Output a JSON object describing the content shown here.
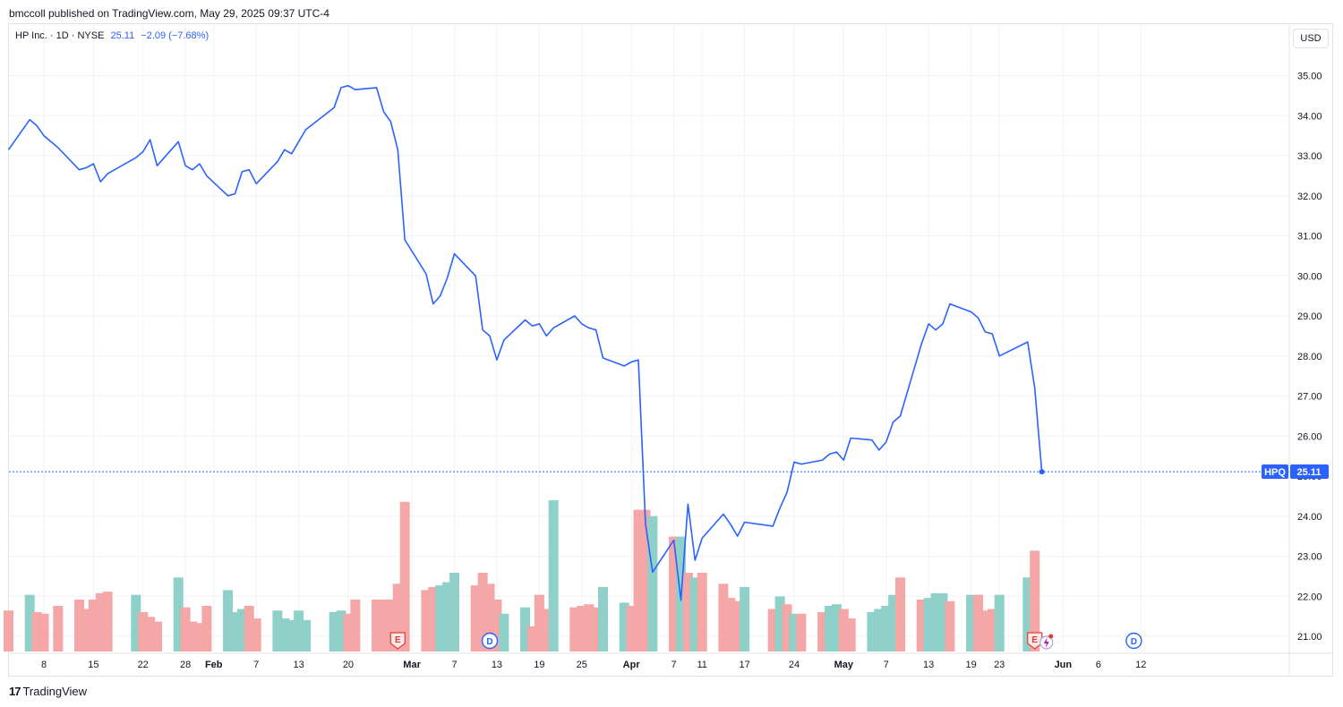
{
  "header": {
    "published_by": "bmccoll published on TradingView.com, May 29, 2025 09:37 UTC-4"
  },
  "legend": {
    "title": "HP Inc. · 1D · NYSE",
    "last_price": "25.11",
    "change": "−2.09 (−7.68%)"
  },
  "currency_label": "USD",
  "price_tag": {
    "symbol": "HPQ",
    "value": "25.11"
  },
  "footer": {
    "brand": "TradingView",
    "logo_mark": "17"
  },
  "colors": {
    "line": "#2962ff",
    "volume_up": "#8fd0c8",
    "volume_down": "#f5a6a6",
    "grid": "#f0f3fa",
    "event_earnings": "#e53935",
    "event_dividend": "#2962ff"
  },
  "chart_data": {
    "type": "line",
    "title": "HP Inc. · 1D · NYSE",
    "x_start_date": "2025-01-03",
    "x": [
      "2025-01-03",
      "2025-01-06",
      "2025-01-07",
      "2025-01-08",
      "2025-01-10",
      "2025-01-13",
      "2025-01-14",
      "2025-01-15",
      "2025-01-16",
      "2025-01-17",
      "2025-01-21",
      "2025-01-22",
      "2025-01-23",
      "2025-01-24",
      "2025-01-27",
      "2025-01-28",
      "2025-01-29",
      "2025-01-30",
      "2025-01-31",
      "2025-02-03",
      "2025-02-04",
      "2025-02-05",
      "2025-02-06",
      "2025-02-07",
      "2025-02-10",
      "2025-02-11",
      "2025-02-12",
      "2025-02-13",
      "2025-02-14",
      "2025-02-18",
      "2025-02-19",
      "2025-02-20",
      "2025-02-21",
      "2025-02-24",
      "2025-02-25",
      "2025-02-26",
      "2025-02-27",
      "2025-02-28",
      "2025-03-03",
      "2025-03-04",
      "2025-03-05",
      "2025-03-06",
      "2025-03-07",
      "2025-03-10",
      "2025-03-11",
      "2025-03-12",
      "2025-03-13",
      "2025-03-14",
      "2025-03-17",
      "2025-03-18",
      "2025-03-19",
      "2025-03-20",
      "2025-03-21",
      "2025-03-24",
      "2025-03-25",
      "2025-03-26",
      "2025-03-27",
      "2025-03-28",
      "2025-03-31",
      "2025-04-01",
      "2025-04-02",
      "2025-04-03",
      "2025-04-04",
      "2025-04-07",
      "2025-04-08",
      "2025-04-09",
      "2025-04-10",
      "2025-04-11",
      "2025-04-14",
      "2025-04-15",
      "2025-04-16",
      "2025-04-17",
      "2025-04-21",
      "2025-04-22",
      "2025-04-23",
      "2025-04-24",
      "2025-04-25",
      "2025-04-28",
      "2025-04-29",
      "2025-04-30",
      "2025-05-01",
      "2025-05-02",
      "2025-05-05",
      "2025-05-06",
      "2025-05-07",
      "2025-05-08",
      "2025-05-09",
      "2025-05-12",
      "2025-05-13",
      "2025-05-14",
      "2025-05-15",
      "2025-05-16",
      "2025-05-19",
      "2025-05-20",
      "2025-05-21",
      "2025-05-22",
      "2025-05-23",
      "2025-05-27",
      "2025-05-28",
      "2025-05-29"
    ],
    "close": [
      33.15,
      33.9,
      33.75,
      33.5,
      33.2,
      32.65,
      32.7,
      32.8,
      32.35,
      32.55,
      32.95,
      33.1,
      33.4,
      32.75,
      33.35,
      32.75,
      32.65,
      32.8,
      32.5,
      32.0,
      32.05,
      32.6,
      32.65,
      32.3,
      32.85,
      33.15,
      33.05,
      33.35,
      33.65,
      34.2,
      34.7,
      34.75,
      34.65,
      34.7,
      34.1,
      33.85,
      33.15,
      30.9,
      30.05,
      29.3,
      29.5,
      29.95,
      30.55,
      30.0,
      28.65,
      28.5,
      27.9,
      28.4,
      28.9,
      28.75,
      28.8,
      28.5,
      28.7,
      29.0,
      28.8,
      28.7,
      28.65,
      27.95,
      27.75,
      27.85,
      27.9,
      23.8,
      22.6,
      23.4,
      21.9,
      24.3,
      22.9,
      23.45,
      24.05,
      23.8,
      23.5,
      23.85,
      23.75,
      24.2,
      24.6,
      25.35,
      25.3,
      25.4,
      25.55,
      25.6,
      25.4,
      25.95,
      25.9,
      25.65,
      25.85,
      26.35,
      26.5,
      28.3,
      28.8,
      28.65,
      28.8,
      29.3,
      29.1,
      28.95,
      28.6,
      28.55,
      28.0,
      28.35,
      27.2,
      25.11
    ],
    "volume_relative": [
      0.26,
      0.36,
      0.25,
      0.24,
      0.29,
      0.33,
      0.27,
      0.33,
      0.37,
      0.38,
      0.36,
      0.25,
      0.22,
      0.19,
      0.47,
      0.28,
      0.19,
      0.18,
      0.29,
      0.39,
      0.25,
      0.27,
      0.29,
      0.21,
      0.26,
      0.21,
      0.2,
      0.26,
      0.2,
      0.25,
      0.26,
      0.24,
      0.33,
      0.33,
      0.33,
      0.33,
      0.43,
      0.95,
      0.39,
      0.41,
      0.42,
      0.44,
      0.5,
      0.42,
      0.5,
      0.43,
      0.33,
      0.24,
      0.28,
      0.16,
      0.36,
      0.27,
      0.96,
      0.28,
      0.29,
      0.3,
      0.28,
      0.41,
      0.31,
      0.29,
      0.9,
      0.9,
      0.86,
      0.73,
      0.73,
      0.5,
      0.47,
      0.5,
      0.43,
      0.34,
      0.32,
      0.41,
      0.27,
      0.35,
      0.3,
      0.24,
      0.24,
      0.25,
      0.29,
      0.3,
      0.27,
      0.21,
      0.25,
      0.27,
      0.29,
      0.36,
      0.47,
      0.33,
      0.34,
      0.37,
      0.37,
      0.32,
      0.36,
      0.36,
      0.26,
      0.27,
      0.36,
      0.47,
      0.64,
      0.0
    ],
    "volume_up": [
      false,
      true,
      false,
      false,
      false,
      false,
      false,
      false,
      false,
      false,
      true,
      false,
      false,
      false,
      true,
      false,
      false,
      false,
      false,
      true,
      true,
      true,
      false,
      false,
      true,
      true,
      true,
      true,
      true,
      true,
      true,
      false,
      false,
      false,
      false,
      false,
      false,
      false,
      false,
      false,
      true,
      true,
      true,
      false,
      false,
      false,
      false,
      true,
      true,
      false,
      false,
      false,
      true,
      false,
      false,
      false,
      false,
      true,
      true,
      false,
      false,
      false,
      true,
      false,
      true,
      false,
      true,
      false,
      false,
      false,
      false,
      true,
      false,
      true,
      false,
      true,
      false,
      false,
      true,
      true,
      false,
      false,
      true,
      true,
      true,
      true,
      false,
      false,
      true,
      true,
      true,
      false,
      true,
      false,
      false,
      false,
      true,
      true,
      false,
      false
    ],
    "ylim": [
      20.55,
      35.75
    ],
    "y_ticks": [
      "35.00",
      "34.00",
      "33.00",
      "32.00",
      "31.00",
      "30.00",
      "29.00",
      "28.00",
      "27.00",
      "26.00",
      "25.00",
      "24.00",
      "23.00",
      "22.00",
      "21.00"
    ],
    "x_tick_labels": [
      {
        "label": "8",
        "date": "2025-01-08"
      },
      {
        "label": "15",
        "date": "2025-01-15"
      },
      {
        "label": "22",
        "date": "2025-01-22"
      },
      {
        "label": "28",
        "date": "2025-01-28"
      },
      {
        "label": "Feb",
        "date": "2025-02-01"
      },
      {
        "label": "7",
        "date": "2025-02-07"
      },
      {
        "label": "13",
        "date": "2025-02-13"
      },
      {
        "label": "20",
        "date": "2025-02-20"
      },
      {
        "label": "Mar",
        "date": "2025-03-01"
      },
      {
        "label": "7",
        "date": "2025-03-07"
      },
      {
        "label": "13",
        "date": "2025-03-13"
      },
      {
        "label": "19",
        "date": "2025-03-19"
      },
      {
        "label": "25",
        "date": "2025-03-25"
      },
      {
        "label": "Apr",
        "date": "2025-04-01"
      },
      {
        "label": "7",
        "date": "2025-04-07"
      },
      {
        "label": "11",
        "date": "2025-04-11"
      },
      {
        "label": "17",
        "date": "2025-04-17"
      },
      {
        "label": "24",
        "date": "2025-04-24"
      },
      {
        "label": "May",
        "date": "2025-05-01"
      },
      {
        "label": "7",
        "date": "2025-05-07"
      },
      {
        "label": "13",
        "date": "2025-05-13"
      },
      {
        "label": "19",
        "date": "2025-05-19"
      },
      {
        "label": "23",
        "date": "2025-05-23"
      },
      {
        "label": "Jun",
        "date": "2025-06-01"
      },
      {
        "label": "6",
        "date": "2025-06-06"
      },
      {
        "label": "12",
        "date": "2025-06-12"
      }
    ],
    "events": [
      {
        "type": "earnings",
        "label": "E",
        "date": "2025-02-27"
      },
      {
        "type": "dividend",
        "label": "D",
        "date": "2025-03-12"
      },
      {
        "type": "earnings",
        "label": "E",
        "date": "2025-05-28"
      },
      {
        "type": "dividend",
        "label": "D",
        "date": "2025-06-11"
      }
    ],
    "last_price_line": 25.11,
    "grid": true
  }
}
